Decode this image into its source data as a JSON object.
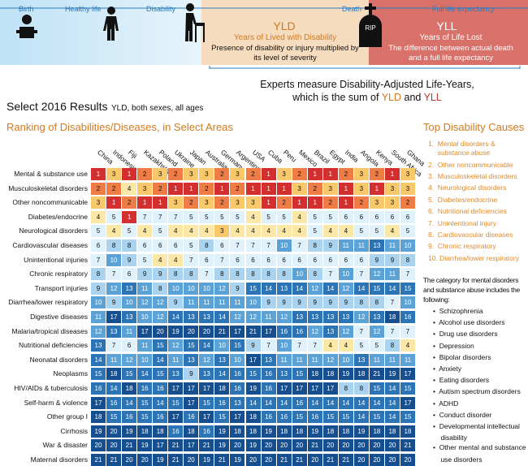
{
  "timeline": {
    "birth": "Birth",
    "healthy_life": "Healthy life",
    "disability": "Disability",
    "death": "Death",
    "full_life_expectancy": "Full life expectancy",
    "yld_title": "YLD",
    "yld_subtitle": "Years of Lived with Disability",
    "yld_desc": "Presence of disability or injury multiplied by its level of severity",
    "yll_title": "YLL",
    "yll_subtitle": "Years of Life Lost",
    "yll_desc": "The difference between actual death and a full life expectancy",
    "rip": "RIP"
  },
  "daly": {
    "line1": "Experts measure Disability-Adjusted Life-Years,",
    "line2_prefix": "which is the sum of ",
    "yld": "YLD",
    "and": " and ",
    "yll": "YLL"
  },
  "results": {
    "title": "Select 2016 Results",
    "subtitle": "YLD, both sexes, all ages"
  },
  "heatmap_title": "Ranking of Disabilities/Diseases, in Select Areas",
  "top_causes": {
    "title": "Top Disability Causes",
    "items": [
      "1.  Mental disorders &",
      "     substance abuse",
      "2.  Other noncommunicable",
      "3.  Musculoskeletal disorders",
      "4.  Neurological disorders",
      "5.  Diabetes/endocrine",
      "6.  Nutritional deficiencies",
      "7.  Unintentional injury",
      "8.  Cardiovascular diseases",
      "9.  Chronic respiratory",
      "10. Diarrhea/lower respiratory"
    ],
    "note_lines": [
      "The category for mental disorders",
      "and substance abuse includes the",
      "following:"
    ],
    "bullets": [
      "•  Schizophrenia",
      "•  Alcohol use disorders",
      "•  Drug use disorders",
      "•  Depression",
      "•  Bipolar disorders",
      "•  Anxiety",
      "•  Eating disorders",
      "•  Autism spectrum disorders",
      "•  ADHD",
      "•  Conduct disorder",
      "•  Developmental intellectual",
      "    disability",
      "•  Other mental and substance",
      "    use disorders"
    ]
  },
  "colors": {
    "rank1": "#d32f2f",
    "rank2": "#ef7b45",
    "rank3": "#f8c86a",
    "rank4": "#fbe7a6",
    "rank5_7": "#dff1fb",
    "rank8_9": "#a9d3ee",
    "rank10_12": "#5ba3d6",
    "rank13_16": "#2b74b5",
    "rank17_21": "#164f8f",
    "timeline_blue": "#2a7cc0",
    "yld_bg": "#f5dcbf",
    "yll_bg": "#d7716a",
    "accent_orange": "#d17a1e",
    "accent_red": "#c0392b"
  },
  "chart_data": {
    "type": "heatmap",
    "title": "Ranking of Disabilities/Diseases, in Select Areas",
    "countries": [
      "China",
      "Indonesia",
      "Fiji",
      "Kazakhstan",
      "Poland",
      "Ukraine",
      "Japan",
      "Australia",
      "Germany",
      "Argentina",
      "USA",
      "Cuba",
      "Peru",
      "Mexico",
      "Brazil",
      "Egypt",
      "India",
      "Angola",
      "Kenya",
      "South Africa",
      "Ghana"
    ],
    "causes": [
      "Mental & substance use",
      "Musculoskeletal disorders",
      "Other noncommunicable",
      "Diabetes/endocrine",
      "Neurological disorders",
      "Cardiovascular diseases",
      "Unintentional injuries",
      "Chronic respiratory",
      "Transport injuries",
      "Diarrhea/lower respiratory",
      "Digestive diseases",
      "Malaria/tropical diseases",
      "Nutritional deficiencies",
      "Neonatal disorders",
      "Neoplasms",
      "HIV/AIDs & tuberculosis",
      "Self-harm & violence",
      "Other group I",
      "Cirrhosis",
      "War & disaster",
      "Maternal disorders"
    ],
    "ranks": [
      [
        1,
        3,
        1,
        2,
        3,
        2,
        3,
        3,
        2,
        3,
        2,
        1,
        3,
        2,
        1,
        1,
        2,
        3,
        2,
        1,
        3
      ],
      [
        2,
        2,
        4,
        3,
        2,
        1,
        1,
        2,
        1,
        2,
        1,
        1,
        1,
        3,
        2,
        3,
        1,
        3,
        1,
        3,
        3
      ],
      [
        3,
        1,
        2,
        1,
        1,
        3,
        2,
        3,
        2,
        3,
        3,
        1,
        2,
        1,
        1,
        2,
        1,
        2,
        3,
        3,
        2
      ],
      [
        4,
        5,
        1,
        7,
        7,
        7,
        5,
        5,
        5,
        5,
        4,
        5,
        5,
        4,
        5,
        5,
        6,
        6,
        6,
        6,
        6
      ],
      [
        5,
        4,
        5,
        4,
        5,
        4,
        4,
        4,
        3,
        4,
        4,
        4,
        4,
        4,
        5,
        4,
        4,
        5,
        5,
        4,
        5
      ],
      [
        6,
        8,
        8,
        6,
        6,
        6,
        5,
        8,
        6,
        7,
        7,
        7,
        10,
        7,
        8,
        9,
        11,
        11,
        13,
        11,
        10
      ],
      [
        7,
        10,
        9,
        5,
        4,
        4,
        7,
        6,
        7,
        6,
        6,
        6,
        6,
        6,
        6,
        6,
        6,
        6,
        9,
        9,
        8
      ],
      [
        8,
        7,
        6,
        9,
        9,
        8,
        8,
        7,
        8,
        8,
        8,
        8,
        8,
        10,
        8,
        7,
        10,
        7,
        12,
        11,
        7
      ],
      [
        9,
        12,
        13,
        11,
        8,
        10,
        10,
        10,
        12,
        9,
        15,
        14,
        13,
        14,
        12,
        14,
        12,
        14,
        15,
        14,
        15
      ],
      [
        10,
        9,
        10,
        12,
        12,
        9,
        11,
        11,
        11,
        11,
        10,
        9,
        9,
        9,
        9,
        9,
        9,
        8,
        8,
        7,
        10
      ],
      [
        11,
        17,
        13,
        10,
        12,
        14,
        13,
        13,
        14,
        12,
        12,
        11,
        12,
        13,
        13,
        13,
        13,
        12,
        13,
        18,
        16
      ],
      [
        12,
        13,
        11,
        17,
        20,
        19,
        20,
        20,
        21,
        17,
        21,
        17,
        16,
        16,
        12,
        13,
        12,
        7,
        12,
        7,
        7
      ],
      [
        13,
        7,
        6,
        11,
        15,
        12,
        15,
        14,
        10,
        15,
        9,
        7,
        10,
        7,
        7,
        4,
        4,
        5,
        5,
        8,
        4
      ],
      [
        14,
        11,
        12,
        10,
        14,
        11,
        13,
        12,
        13,
        10,
        17,
        13,
        11,
        11,
        11,
        12,
        10,
        13,
        11,
        11,
        11
      ],
      [
        15,
        18,
        15,
        14,
        15,
        13,
        9,
        13,
        14,
        16,
        15,
        16,
        13,
        15,
        18,
        18,
        19,
        18,
        21,
        19,
        17
      ],
      [
        16,
        14,
        18,
        16,
        16,
        17,
        17,
        17,
        18,
        16,
        19,
        16,
        17,
        17,
        17,
        17,
        8,
        8,
        15,
        14,
        15
      ],
      [
        17,
        16,
        14,
        15,
        14,
        15,
        17,
        15,
        16,
        13,
        14,
        14,
        14,
        16,
        14,
        14,
        14,
        14,
        14,
        14,
        17
      ],
      [
        18,
        15,
        16,
        15,
        16,
        17,
        16,
        17,
        15,
        17,
        18,
        16,
        16,
        15,
        16,
        15,
        15,
        14,
        15,
        14,
        15
      ],
      [
        19,
        20,
        19,
        18,
        18,
        16,
        18,
        16,
        19,
        18,
        18,
        19,
        18,
        18,
        19,
        18,
        18,
        19,
        18,
        18,
        18
      ],
      [
        20,
        20,
        21,
        19,
        17,
        21,
        17,
        21,
        19,
        20,
        19,
        20,
        20,
        20,
        21,
        20,
        20,
        20,
        20,
        20,
        21
      ],
      [
        21,
        21,
        20,
        20,
        19,
        21,
        20,
        19,
        21,
        19,
        20,
        20,
        21,
        21,
        20,
        21,
        21,
        20,
        20,
        20,
        20
      ]
    ]
  }
}
